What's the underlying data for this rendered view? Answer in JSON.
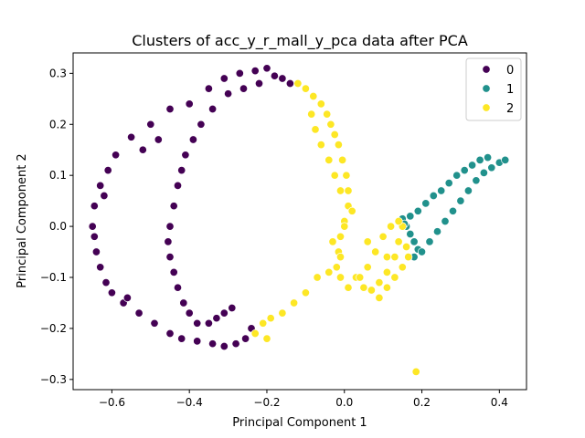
{
  "chart_data": {
    "type": "scatter",
    "title": "Clusters of acc_y_r_mall_y_pca data after PCA",
    "xlabel": "Principal Component 1",
    "ylabel": "Principal Component 2",
    "xlim": [
      -0.7,
      0.47
    ],
    "ylim": [
      -0.32,
      0.34
    ],
    "xticks": [
      -0.6,
      -0.4,
      -0.2,
      0.0,
      0.2,
      0.4
    ],
    "xtick_labels": [
      "−0.6",
      "−0.4",
      "−0.2",
      "0.0",
      "0.2",
      "0.4"
    ],
    "yticks": [
      -0.3,
      -0.2,
      -0.1,
      0.0,
      0.1,
      0.2,
      0.3
    ],
    "ytick_labels": [
      "−0.3",
      "−0.2",
      "−0.1",
      "0.0",
      "0.1",
      "0.2",
      "0.3"
    ],
    "grid": false,
    "legend_position": "top-right",
    "series": [
      {
        "name": "0",
        "color": "#440154",
        "points": [
          [
            -0.23,
            0.305
          ],
          [
            -0.27,
            0.3
          ],
          [
            -0.31,
            0.29
          ],
          [
            -0.35,
            0.27
          ],
          [
            -0.4,
            0.24
          ],
          [
            -0.45,
            0.23
          ],
          [
            -0.5,
            0.2
          ],
          [
            -0.55,
            0.175
          ],
          [
            -0.59,
            0.14
          ],
          [
            -0.61,
            0.11
          ],
          [
            -0.63,
            0.08
          ],
          [
            -0.645,
            0.04
          ],
          [
            -0.65,
            0.0
          ],
          [
            -0.645,
            -0.02
          ],
          [
            -0.64,
            -0.05
          ],
          [
            -0.63,
            -0.08
          ],
          [
            -0.615,
            -0.11
          ],
          [
            -0.6,
            -0.13
          ],
          [
            -0.57,
            -0.15
          ],
          [
            -0.53,
            -0.17
          ],
          [
            -0.49,
            -0.19
          ],
          [
            -0.45,
            -0.21
          ],
          [
            -0.42,
            -0.22
          ],
          [
            -0.38,
            -0.225
          ],
          [
            -0.34,
            -0.23
          ],
          [
            -0.31,
            -0.235
          ],
          [
            -0.28,
            -0.23
          ],
          [
            -0.255,
            -0.22
          ],
          [
            -0.24,
            -0.2
          ],
          [
            -0.2,
            0.31
          ],
          [
            -0.18,
            0.295
          ],
          [
            -0.22,
            0.28
          ],
          [
            -0.26,
            0.27
          ],
          [
            -0.3,
            0.26
          ],
          [
            -0.34,
            0.23
          ],
          [
            -0.37,
            0.2
          ],
          [
            -0.39,
            0.17
          ],
          [
            -0.41,
            0.14
          ],
          [
            -0.42,
            0.11
          ],
          [
            -0.43,
            0.08
          ],
          [
            -0.44,
            0.04
          ],
          [
            -0.45,
            0.0
          ],
          [
            -0.455,
            -0.03
          ],
          [
            -0.45,
            -0.06
          ],
          [
            -0.44,
            -0.09
          ],
          [
            -0.43,
            -0.12
          ],
          [
            -0.415,
            -0.15
          ],
          [
            -0.4,
            -0.17
          ],
          [
            -0.38,
            -0.19
          ],
          [
            -0.35,
            -0.19
          ],
          [
            -0.33,
            -0.18
          ],
          [
            -0.31,
            -0.17
          ],
          [
            -0.29,
            -0.16
          ],
          [
            -0.16,
            0.29
          ],
          [
            -0.14,
            0.28
          ],
          [
            -0.48,
            0.17
          ],
          [
            -0.52,
            0.15
          ],
          [
            -0.62,
            0.06
          ],
          [
            -0.56,
            -0.14
          ]
        ]
      },
      {
        "name": "1",
        "color": "#21918c",
        "points": [
          [
            0.15,
            0.015
          ],
          [
            0.16,
            0.0
          ],
          [
            0.17,
            -0.015
          ],
          [
            0.18,
            -0.03
          ],
          [
            0.19,
            -0.045
          ],
          [
            0.2,
            -0.05
          ],
          [
            0.22,
            -0.03
          ],
          [
            0.24,
            -0.01
          ],
          [
            0.26,
            0.01
          ],
          [
            0.28,
            0.03
          ],
          [
            0.3,
            0.05
          ],
          [
            0.32,
            0.07
          ],
          [
            0.34,
            0.09
          ],
          [
            0.36,
            0.105
          ],
          [
            0.38,
            0.115
          ],
          [
            0.4,
            0.125
          ],
          [
            0.415,
            0.13
          ],
          [
            0.17,
            0.02
          ],
          [
            0.19,
            0.03
          ],
          [
            0.21,
            0.045
          ],
          [
            0.23,
            0.06
          ],
          [
            0.25,
            0.07
          ],
          [
            0.27,
            0.085
          ],
          [
            0.29,
            0.1
          ],
          [
            0.31,
            0.11
          ],
          [
            0.33,
            0.12
          ],
          [
            0.35,
            0.13
          ],
          [
            0.37,
            0.135
          ],
          [
            0.155,
            0.005
          ],
          [
            0.18,
            -0.06
          ]
        ]
      },
      {
        "name": "2",
        "color": "#fde725",
        "points": [
          [
            -0.12,
            0.28
          ],
          [
            -0.1,
            0.27
          ],
          [
            -0.08,
            0.255
          ],
          [
            -0.06,
            0.24
          ],
          [
            -0.045,
            0.22
          ],
          [
            -0.035,
            0.2
          ],
          [
            -0.025,
            0.18
          ],
          [
            -0.015,
            0.16
          ],
          [
            -0.005,
            0.13
          ],
          [
            0.005,
            0.1
          ],
          [
            0.01,
            0.07
          ],
          [
            0.01,
            0.04
          ],
          [
            0.0,
            0.01
          ],
          [
            -0.01,
            -0.02
          ],
          [
            -0.015,
            -0.05
          ],
          [
            -0.02,
            -0.08
          ],
          [
            -0.01,
            -0.1
          ],
          [
            0.01,
            -0.12
          ],
          [
            -0.085,
            0.22
          ],
          [
            -0.075,
            0.19
          ],
          [
            -0.06,
            0.16
          ],
          [
            -0.04,
            0.13
          ],
          [
            -0.025,
            0.1
          ],
          [
            -0.01,
            0.07
          ],
          [
            0.0,
            0.0
          ],
          [
            -0.01,
            -0.06
          ],
          [
            0.03,
            -0.1
          ],
          [
            0.05,
            -0.12
          ],
          [
            0.07,
            -0.125
          ],
          [
            0.09,
            -0.11
          ],
          [
            0.11,
            -0.09
          ],
          [
            0.13,
            -0.06
          ],
          [
            0.14,
            -0.03
          ],
          [
            0.15,
            0.0
          ],
          [
            0.14,
            0.01
          ],
          [
            0.12,
            0.0
          ],
          [
            0.1,
            -0.02
          ],
          [
            0.08,
            -0.05
          ],
          [
            0.06,
            -0.08
          ],
          [
            0.04,
            -0.1
          ],
          [
            0.16,
            -0.04
          ],
          [
            0.165,
            -0.06
          ],
          [
            0.15,
            -0.08
          ],
          [
            0.13,
            -0.1
          ],
          [
            0.11,
            -0.12
          ],
          [
            0.09,
            -0.14
          ],
          [
            -0.04,
            -0.09
          ],
          [
            -0.07,
            -0.1
          ],
          [
            -0.1,
            -0.13
          ],
          [
            -0.13,
            -0.15
          ],
          [
            -0.16,
            -0.17
          ],
          [
            -0.19,
            -0.18
          ],
          [
            -0.21,
            -0.19
          ],
          [
            -0.23,
            -0.21
          ],
          [
            -0.2,
            -0.22
          ],
          [
            0.185,
            -0.285
          ],
          [
            0.02,
            0.03
          ],
          [
            -0.03,
            -0.03
          ],
          [
            0.06,
            -0.03
          ],
          [
            0.11,
            -0.06
          ]
        ]
      }
    ]
  }
}
